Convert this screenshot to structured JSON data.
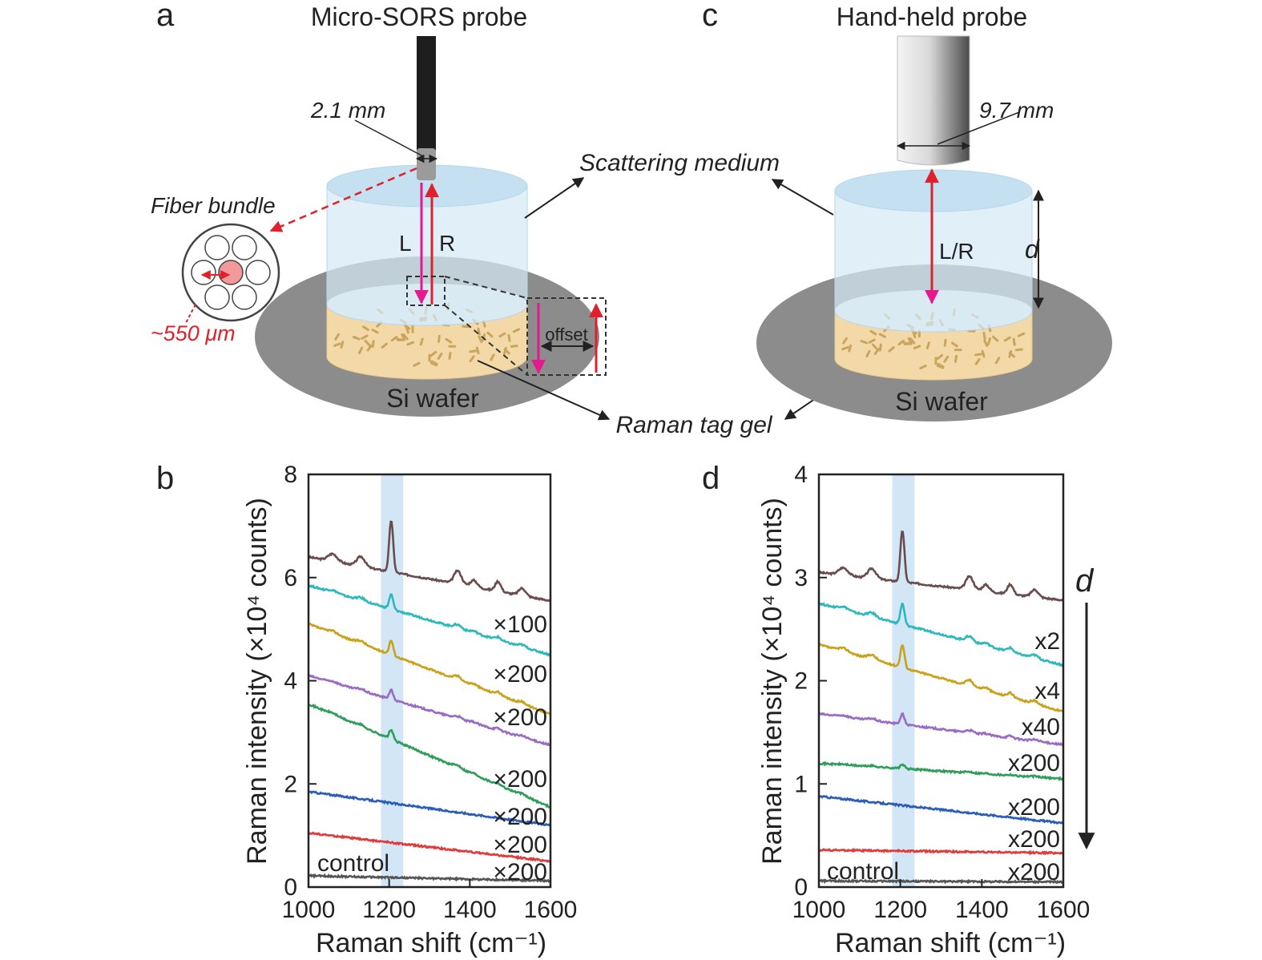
{
  "panel_labels": {
    "a": "a",
    "b": "b",
    "c": "c",
    "d": "d"
  },
  "panel_a": {
    "title": "Micro-SORS probe",
    "diameter": "2.1 mm",
    "fiber_bundle": "Fiber bundle",
    "fiber_spacing": "~550 μm",
    "laser_label": "L",
    "raman_label": "R",
    "offset": "offset",
    "wafer": "Si wafer"
  },
  "panel_c": {
    "title": "Hand-held probe",
    "diameter": "9.7 mm",
    "lr_label": "L/R",
    "depth_label": "d",
    "wafer": "Si wafer"
  },
  "shared": {
    "scattering_medium": "Scattering medium",
    "raman_tag_gel": "Raman tag gel"
  },
  "colors": {
    "laser": "#e5198f",
    "raman": "#e0202a",
    "wafer": "#8c8c8c",
    "gel": "#f3d9a8",
    "medium": "#d4e9f5",
    "highlight_band": "#bfdcf2",
    "probe_dark": "#1e1e1e"
  },
  "chart_data": [
    {
      "panel": "b",
      "type": "line",
      "xlabel": "Raman shift (cm⁻¹)",
      "ylabel": "Raman intensity (×10⁴ counts)",
      "xlim": [
        1000,
        1600
      ],
      "ylim": [
        0,
        8
      ],
      "xticks": [
        "1000",
        "1200",
        "1400",
        "1600"
      ],
      "yticks": [
        "0",
        "2",
        "4",
        "6",
        "8"
      ],
      "highlight_band": [
        1180,
        1235
      ],
      "series": [
        {
          "color": "#6b4c4c",
          "start": 6.4,
          "end": 5.55,
          "peak": 1.0
        },
        {
          "color": "#2cb8bd",
          "start": 5.85,
          "end": 4.5,
          "peak": 0.28,
          "label": "×100"
        },
        {
          "color": "#c9a21a",
          "start": 5.1,
          "end": 3.35,
          "peak": 0.28,
          "label": "×200"
        },
        {
          "color": "#9b6bc4",
          "start": 4.1,
          "end": 2.75,
          "peak": 0.18,
          "label": "×200"
        },
        {
          "color": "#2f9e5b",
          "start": 3.55,
          "end": 1.55,
          "peak": 0.18,
          "label": "×200"
        },
        {
          "color": "#2a5cb8",
          "start": 1.85,
          "end": 1.2,
          "peak": 0.0,
          "label": "×200"
        },
        {
          "color": "#e23a3a",
          "start": 1.05,
          "end": 0.5,
          "peak": 0.0,
          "label": "×200"
        },
        {
          "color": "#555555",
          "start": 0.22,
          "end": 0.12,
          "peak": 0.0,
          "label": "×200"
        }
      ],
      "control_label": "control"
    },
    {
      "panel": "d",
      "type": "line",
      "xlabel": "Raman shift (cm⁻¹)",
      "ylabel": "Raman intensity (×10⁴ counts)",
      "xlim": [
        1000,
        1600
      ],
      "ylim": [
        0,
        4
      ],
      "xticks": [
        "1000",
        "1200",
        "1400",
        "1600"
      ],
      "yticks": [
        "0",
        "1",
        "2",
        "3",
        "4"
      ],
      "highlight_band": [
        1180,
        1235
      ],
      "series": [
        {
          "color": "#6b4c4c",
          "start": 3.05,
          "end": 2.78,
          "peak": 0.5
        },
        {
          "color": "#2cb8bd",
          "start": 2.75,
          "end": 2.15,
          "peak": 0.2,
          "label": "x2"
        },
        {
          "color": "#c9a21a",
          "start": 2.35,
          "end": 1.7,
          "peak": 0.22,
          "label": "x4"
        },
        {
          "color": "#9b6bc4",
          "start": 1.68,
          "end": 1.38,
          "peak": 0.1,
          "label": "x40"
        },
        {
          "color": "#2f9e5b",
          "start": 1.2,
          "end": 1.05,
          "peak": 0.04,
          "label": "x200"
        },
        {
          "color": "#2a5cb8",
          "start": 0.88,
          "end": 0.62,
          "peak": 0.0,
          "label": "x200"
        },
        {
          "color": "#e23a3a",
          "start": 0.36,
          "end": 0.33,
          "peak": 0.0,
          "label": "x200"
        },
        {
          "color": "#555555",
          "start": 0.06,
          "end": 0.05,
          "peak": 0.0,
          "label": "x200"
        }
      ],
      "control_label": "control",
      "arrow_label": "d"
    }
  ]
}
